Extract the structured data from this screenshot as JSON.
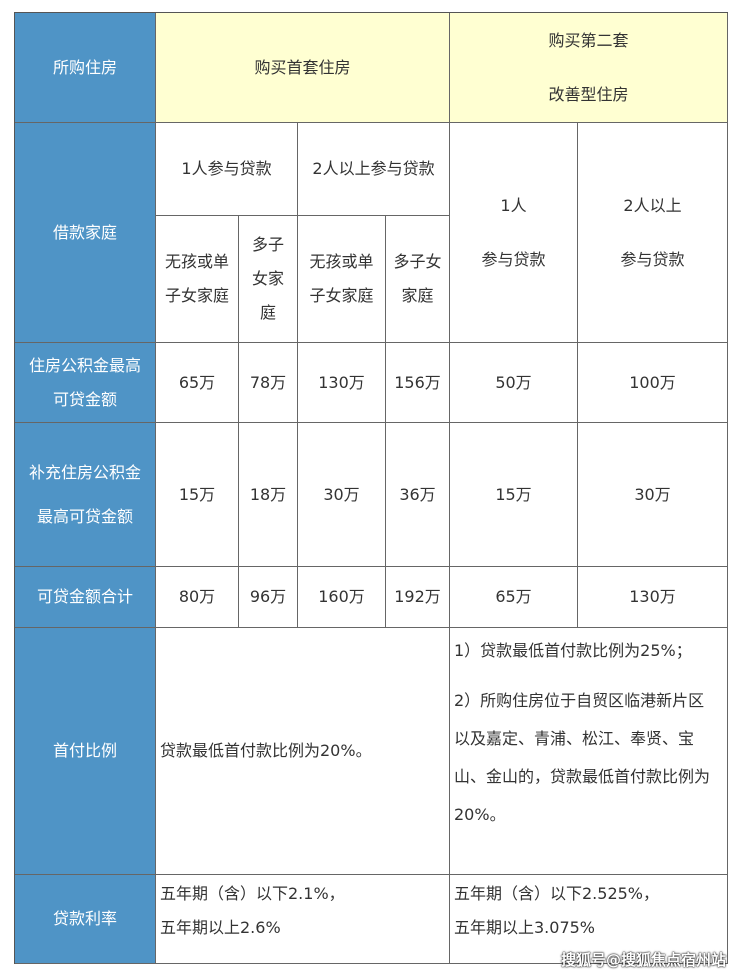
{
  "header": {
    "row_label": "所购住房",
    "first_home": "购买首套住房",
    "second_home_line1": "购买第二套",
    "second_home_line2": "改善型住房"
  },
  "family": {
    "row_label": "借款家庭",
    "one_person": "1人参与贷款",
    "two_plus": "2人以上参与贷款",
    "no_child": "无孩或单子女家庭",
    "multi_child": "多子女家庭",
    "second_one_line1": "1人",
    "second_one_line2": "参与贷款",
    "second_two_line1": "2人以上",
    "second_two_line2": "参与贷款"
  },
  "rows": [
    {
      "label": "住房公积金最高可贷金额",
      "values": [
        "65万",
        "78万",
        "130万",
        "156万",
        "50万",
        "100万"
      ]
    },
    {
      "label": "补充住房公积金最高可贷金额",
      "values": [
        "15万",
        "18万",
        "30万",
        "36万",
        "15万",
        "30万"
      ]
    },
    {
      "label": "可贷金额合计",
      "values": [
        "80万",
        "96万",
        "160万",
        "192万",
        "65万",
        "130万"
      ]
    }
  ],
  "down_payment": {
    "label": "首付比例",
    "first": "贷款最低首付款比例为20%。",
    "second_1": "1）贷款最低首付款比例为25%；",
    "second_2": "2）所购住房位于自贸区临港新片区以及嘉定、青浦、松江、奉贤、宝山、金山的，贷款最低首付款比例为20%。"
  },
  "rate": {
    "label": "贷款利率",
    "first_1": "五年期（含）以下2.1%，",
    "first_2": "五年期以上2.6%",
    "second_1": "五年期（含）以下2.525%，",
    "second_2": "五年期以上3.075%"
  },
  "watermark": "搜狐号@搜狐焦点宿州站",
  "colors": {
    "header_blue": "#4f94c6",
    "header_yellow": "#ffffd2"
  }
}
